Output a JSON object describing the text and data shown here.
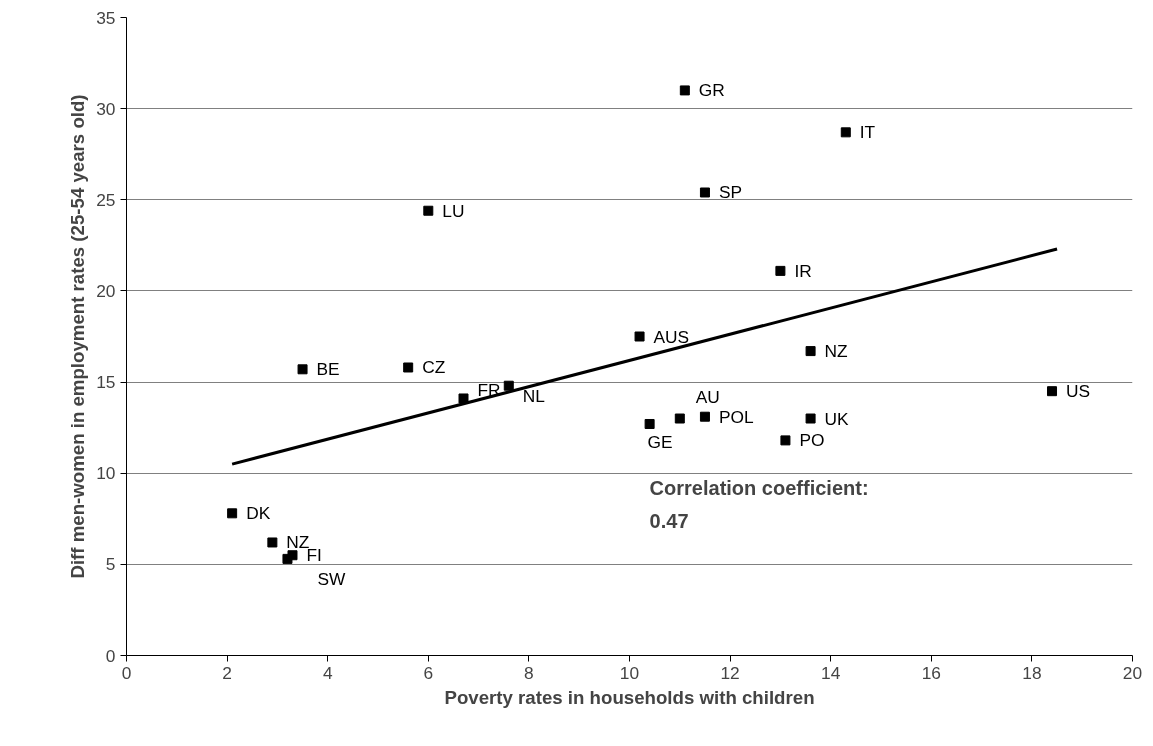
{
  "chart_data": {
    "type": "scatter",
    "xlabel": "Poverty rates in households with children",
    "ylabel": "Diff men-women in employment rates (25-54 years old)",
    "xlim": [
      0,
      20
    ],
    "xticks": [
      0,
      2,
      4,
      6,
      8,
      10,
      12,
      14,
      16,
      18,
      20
    ],
    "ylim": [
      0,
      35
    ],
    "yticks": [
      0,
      5,
      10,
      15,
      20,
      25,
      30,
      35
    ],
    "grid": "y",
    "series": [
      {
        "marker": "square",
        "color": "#000000",
        "x": [
          2.1,
          2.9,
          3.2,
          3.3,
          3.5,
          5.6,
          6.0,
          6.7,
          7.6,
          10.2,
          10.4,
          11.0,
          11.5,
          11.1,
          11.5,
          13.0,
          13.1,
          13.6,
          13.6,
          14.3,
          18.4
        ],
        "values": [
          7.8,
          6.2,
          5.3,
          5.5,
          15.7,
          15.8,
          24.4,
          14.1,
          14.8,
          17.5,
          12.7,
          13.0,
          13.1,
          31.0,
          25.4,
          21.1,
          11.8,
          13.0,
          16.7,
          28.7,
          14.5
        ],
        "value_labels": [
          "DK",
          "NZ",
          "SW",
          "FI",
          "BE",
          "CZ",
          "LU",
          "FR",
          "NL",
          "AUS",
          "GE",
          "AU",
          "POL",
          "GR",
          "SP",
          "IR",
          "PO",
          "UK",
          "NZ",
          "IT",
          "US"
        ]
      },
      {
        "type": "line",
        "color": "#000000",
        "x": [
          2.1,
          18.5
        ],
        "values": [
          10.5,
          22.3
        ]
      }
    ],
    "annotations": [
      "Correlation coefficient:\n0.47"
    ]
  }
}
